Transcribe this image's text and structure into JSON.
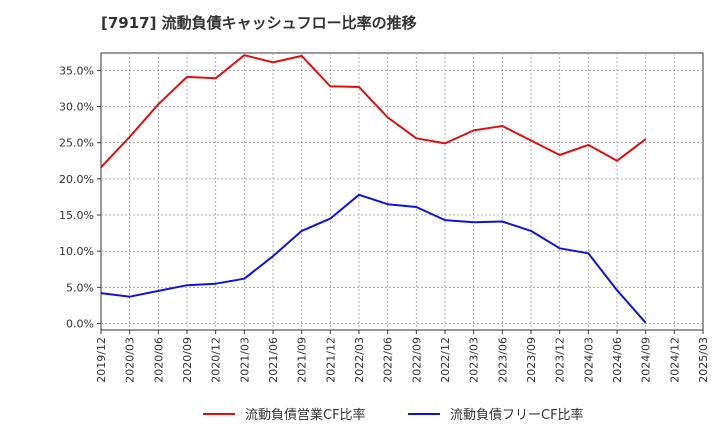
{
  "chart_data": {
    "type": "line",
    "title": "[7917]  流動負債キャッシュフロー比率の推移",
    "xlabel": "",
    "ylabel": "",
    "x": [
      "2019/12",
      "2020/03",
      "2020/06",
      "2020/09",
      "2020/12",
      "2021/03",
      "2021/06",
      "2021/09",
      "2021/12",
      "2022/03",
      "2022/06",
      "2022/09",
      "2022/12",
      "2023/03",
      "2023/06",
      "2023/09",
      "2023/12",
      "2024/03",
      "2024/06",
      "2024/09",
      "2024/12",
      "2025/03"
    ],
    "ylim": [
      -0.9,
      37.4
    ],
    "yticks": [
      "0.0%",
      "5.0%",
      "10.0%",
      "15.0%",
      "20.0%",
      "25.0%",
      "30.0%",
      "35.0%"
    ],
    "ytick_values": [
      0,
      5,
      10,
      15,
      20,
      25,
      30,
      35
    ],
    "grid": true,
    "legend_position": "bottom",
    "series": [
      {
        "name": "流動負債営業CF比率",
        "color": "#dd1111",
        "values": [
          21.6,
          25.8,
          30.3,
          34.1,
          33.9,
          37.1,
          36.1,
          37.0,
          32.8,
          32.7,
          28.5,
          25.6,
          24.9,
          26.7,
          27.3,
          25.3,
          23.3,
          24.7,
          22.5,
          25.5,
          null,
          null
        ]
      },
      {
        "name": "流動負債フリーCF比率",
        "color": "#1111dd",
        "values": [
          4.2,
          3.7,
          4.5,
          5.3,
          5.5,
          6.2,
          9.3,
          12.8,
          14.5,
          17.8,
          16.5,
          16.1,
          14.3,
          14.0,
          14.1,
          12.8,
          10.4,
          9.7,
          4.6,
          0.1,
          null,
          null
        ]
      }
    ]
  }
}
